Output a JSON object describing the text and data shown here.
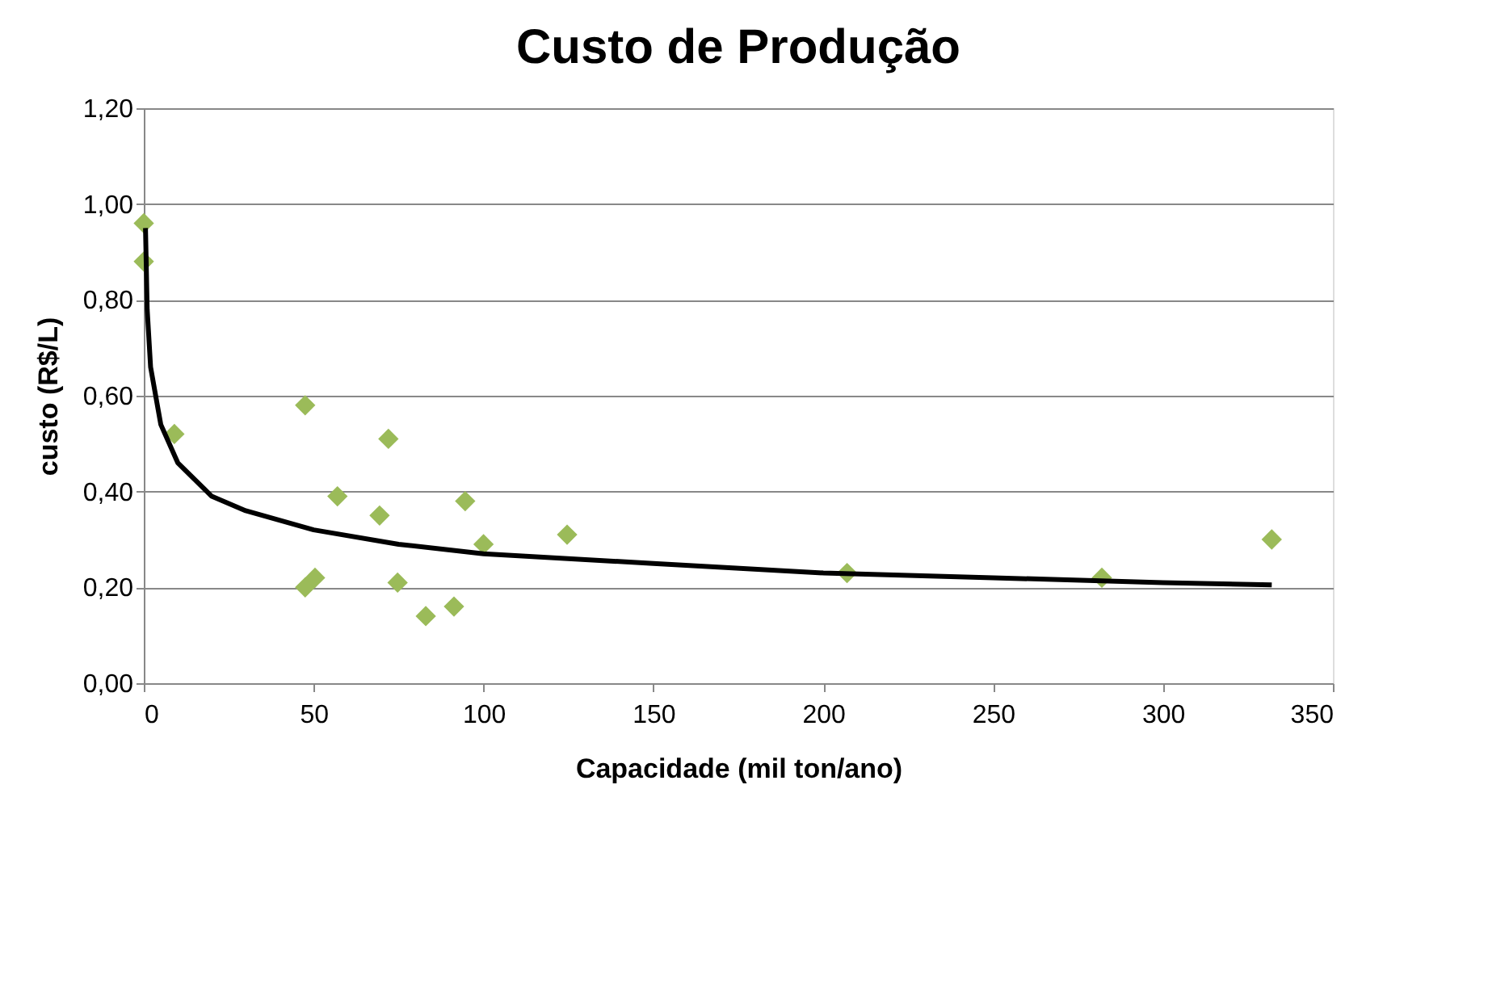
{
  "chart_data": {
    "type": "scatter",
    "title": "Custo de Produção",
    "xlabel": "Capacidade (mil ton/ano)",
    "ylabel": "custo (R$/L)",
    "xlim": [
      0,
      350
    ],
    "xticks": [
      0,
      50,
      100,
      150,
      200,
      250,
      300,
      350
    ],
    "ylim": [
      0,
      1.2
    ],
    "yticks": [
      {
        "value": 0,
        "label": "0,00"
      },
      {
        "value": 0.2,
        "label": "0,20"
      },
      {
        "value": 0.4,
        "label": "0,40"
      },
      {
        "value": 0.6,
        "label": "0,60"
      },
      {
        "value": 0.8,
        "label": "0,80"
      },
      {
        "value": 1.0,
        "label": "1,00"
      },
      {
        "value": 1.2,
        "label": "1,20"
      }
    ],
    "grid": "y",
    "series": [
      {
        "marker": "diamond",
        "color": "#9bbb59",
        "x": [
          0,
          0,
          9,
          47.5,
          47.5,
          50.4,
          57,
          72,
          69.4,
          74.7,
          83,
          91.3,
          94.6,
          100,
          124.6,
          207,
          282,
          332
        ],
        "values": [
          0.96,
          0.88,
          0.52,
          0.58,
          0.2,
          0.22,
          0.39,
          0.51,
          0.35,
          0.21,
          0.14,
          0.16,
          0.38,
          0.29,
          0.31,
          0.23,
          0.22,
          0.3
        ]
      },
      {
        "type": "line",
        "marker": "none",
        "line_style": "solid",
        "color": "#000000",
        "x": [
          0.5,
          1,
          2,
          5,
          10,
          20,
          30,
          50,
          75,
          100,
          150,
          200,
          250,
          300,
          332
        ],
        "values": [
          0.95,
          0.78,
          0.66,
          0.54,
          0.46,
          0.39,
          0.36,
          0.32,
          0.29,
          0.27,
          0.25,
          0.23,
          0.22,
          0.21,
          0.205
        ]
      }
    ]
  }
}
